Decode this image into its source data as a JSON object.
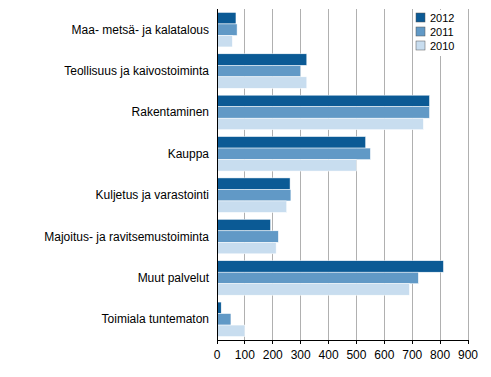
{
  "chart_data": {
    "type": "bar",
    "orientation": "horizontal",
    "categories": [
      "Maa- metsä- ja kalatalous",
      "Teollisuus ja kaivostoiminta",
      "Rakentaminen",
      "Kauppa",
      "Kuljetus ja varastointi",
      "Majoitus- ja ravitsemustoiminta",
      "Muut palvelut",
      "Toimiala tuntematon"
    ],
    "series": [
      {
        "name": "2012",
        "color": "#0b5a95",
        "values": [
          68,
          322,
          762,
          533,
          262,
          192,
          812,
          15
        ]
      },
      {
        "name": "2011",
        "color": "#6199c6",
        "values": [
          72,
          300,
          762,
          550,
          265,
          220,
          722,
          50
        ]
      },
      {
        "name": "2010",
        "color": "#c8ddef",
        "values": [
          55,
          322,
          740,
          500,
          250,
          212,
          690,
          100
        ]
      }
    ],
    "xlim": [
      0,
      900
    ],
    "xticks": [
      0,
      100,
      200,
      300,
      400,
      500,
      600,
      700,
      800,
      900
    ],
    "grid": true,
    "legend": "top-right"
  }
}
